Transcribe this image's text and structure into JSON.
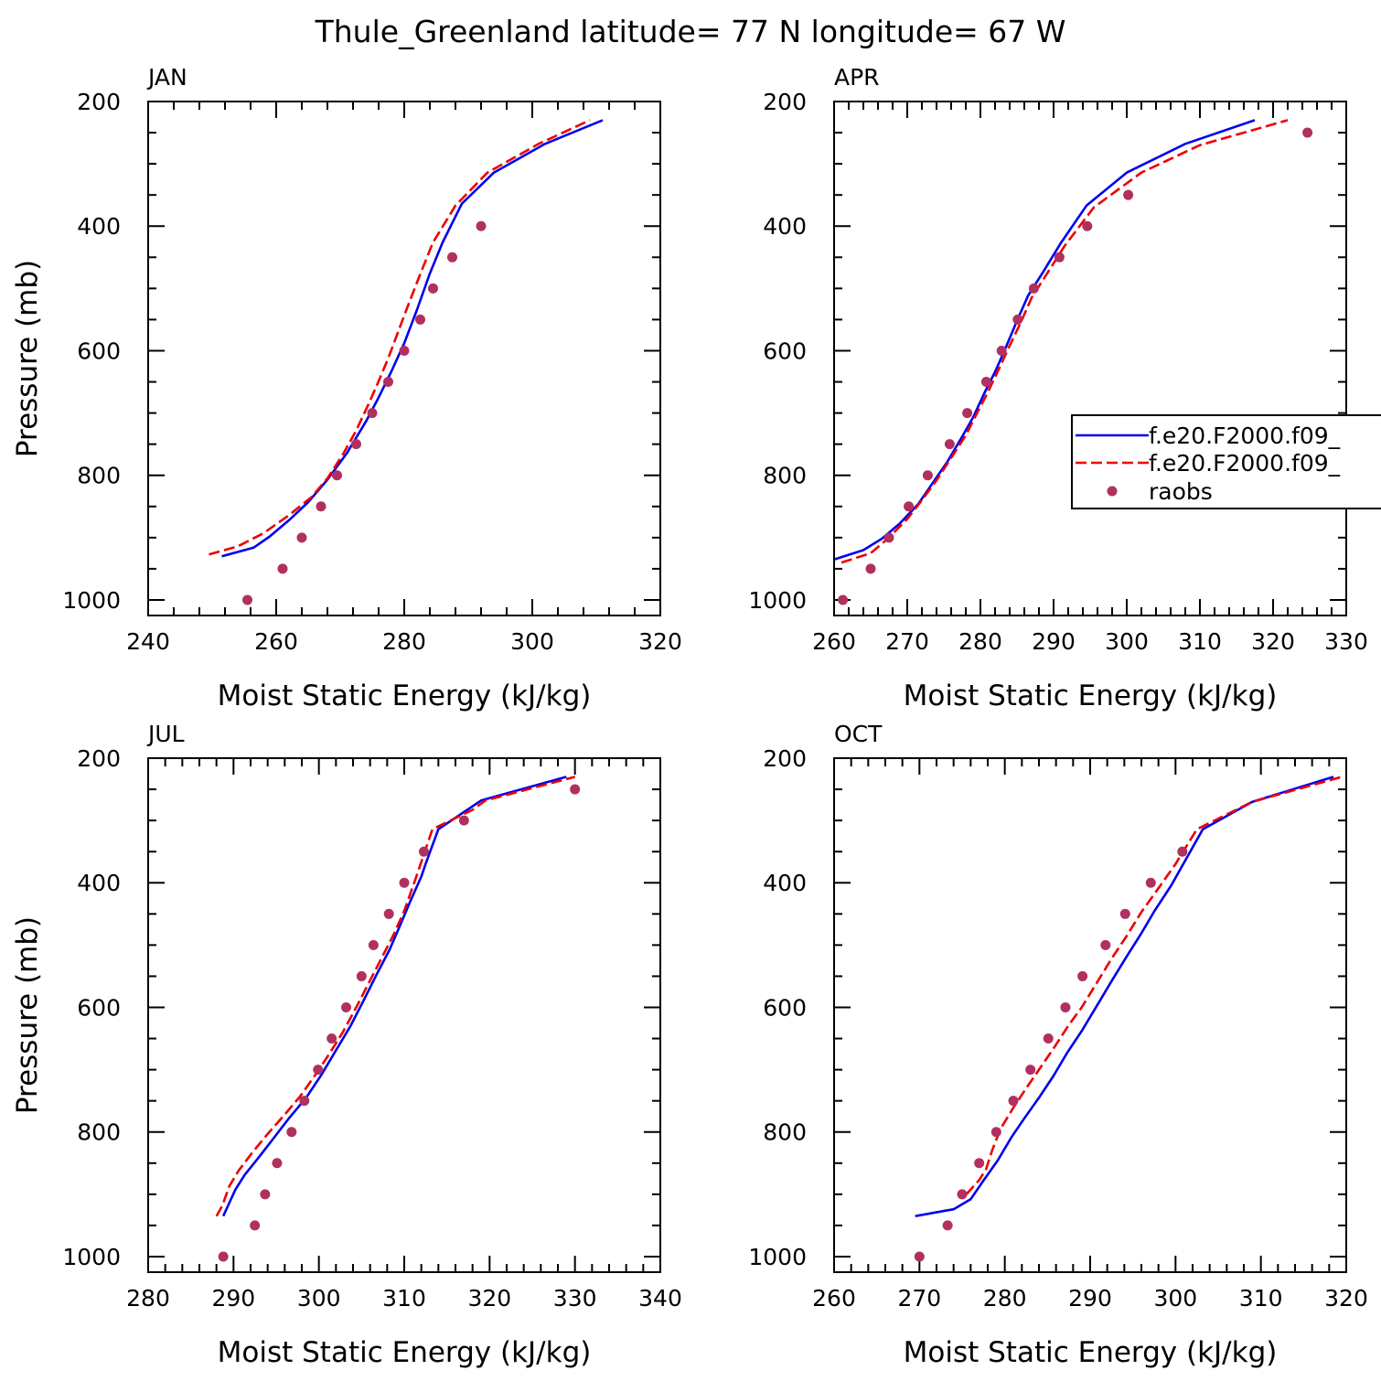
{
  "title": "Thule_Greenland  latitude= 77 N longitude= 67 W",
  "colors": {
    "model1": "#0000ee",
    "model2": "#ee0000",
    "obs": "#b03060"
  },
  "legend": {
    "entries": [
      {
        "label": "f.e20.F2000.f09_",
        "style": "solid-blue"
      },
      {
        "label": "f.e20.F2000.f09_",
        "style": "dashed-red"
      },
      {
        "label": "raobs",
        "style": "dot"
      }
    ]
  },
  "chart_data": [
    {
      "type": "line",
      "panel": "JAN",
      "xlabel": "Moist Static Energy (kJ/kg)",
      "ylabel": "Pressure (mb)",
      "xlim": [
        240,
        320
      ],
      "ylim": [
        200,
        1025
      ],
      "xticks": [
        240,
        260,
        280,
        300,
        320
      ],
      "yticks": [
        200,
        400,
        600,
        800,
        1000
      ],
      "series": [
        {
          "name": "f.e20.F2000.f09_",
          "style": "solid",
          "points": [
            [
              251.5,
              930
            ],
            [
              256.5,
              916
            ],
            [
              259,
              898
            ],
            [
              262,
              872
            ],
            [
              265,
              843
            ],
            [
              268,
              807
            ],
            [
              271,
              765
            ],
            [
              274,
              714
            ],
            [
              276,
              675
            ],
            [
              278,
              633
            ],
            [
              280,
              588
            ],
            [
              282,
              534
            ],
            [
              284,
              476
            ],
            [
              286,
              426
            ],
            [
              289,
              364
            ],
            [
              294,
              314
            ],
            [
              302,
              268
            ],
            [
              311,
              230
            ]
          ]
        },
        {
          "name": "f.e20.F2000.f09_",
          "style": "dashed",
          "points": [
            [
              249.5,
              927
            ],
            [
              254,
              914
            ],
            [
              258,
              893
            ],
            [
              262,
              864
            ],
            [
              265.5,
              835
            ],
            [
              268,
              805
            ],
            [
              270.5,
              765
            ],
            [
              272.5,
              728
            ],
            [
              274.5,
              684
            ],
            [
              276,
              649
            ],
            [
              277.5,
              612
            ],
            [
              279,
              571
            ],
            [
              280.5,
              530
            ],
            [
              282.5,
              477
            ],
            [
              284.5,
              426
            ],
            [
              288,
              367
            ],
            [
              293,
              314
            ],
            [
              301,
              268
            ],
            [
              309,
              230
            ]
          ]
        },
        {
          "name": "raobs",
          "style": "points",
          "points": [
            [
              255.5,
              1000
            ],
            [
              261,
              950
            ],
            [
              264,
              900
            ],
            [
              267,
              850
            ],
            [
              269.5,
              800
            ],
            [
              272.5,
              750
            ],
            [
              275,
              700
            ],
            [
              277.5,
              650
            ],
            [
              280,
              600
            ],
            [
              282.5,
              550
            ],
            [
              284.5,
              500
            ],
            [
              287.5,
              450
            ],
            [
              292,
              400
            ]
          ]
        }
      ]
    },
    {
      "type": "line",
      "panel": "APR",
      "xlabel": "Moist Static Energy (kJ/kg)",
      "ylabel": "",
      "xlim": [
        260,
        330
      ],
      "ylim": [
        200,
        1025
      ],
      "xticks": [
        260,
        270,
        280,
        290,
        300,
        310,
        320,
        330
      ],
      "yticks": [
        200,
        400,
        600,
        800,
        1000
      ],
      "series": [
        {
          "name": "f.e20.F2000.f09_",
          "style": "solid",
          "points": [
            [
              260,
              935
            ],
            [
              264,
              920
            ],
            [
              266.5,
              902
            ],
            [
              269,
              877
            ],
            [
              271.5,
              846
            ],
            [
              273.5,
              812
            ],
            [
              275.5,
              778
            ],
            [
              277.5,
              738
            ],
            [
              279,
              707
            ],
            [
              280.5,
              669
            ],
            [
              282,
              634
            ],
            [
              283.5,
              594
            ],
            [
              285,
              552
            ],
            [
              286.5,
              512
            ],
            [
              288.5,
              475
            ],
            [
              291,
              427
            ],
            [
              294.5,
              367
            ],
            [
              300,
              314
            ],
            [
              308,
              268
            ],
            [
              317.5,
              230
            ]
          ]
        },
        {
          "name": "f.e20.F2000.f09_",
          "style": "dashed",
          "points": [
            [
              261,
              940
            ],
            [
              265,
              925
            ],
            [
              267.5,
              900
            ],
            [
              270,
              870
            ],
            [
              272,
              840
            ],
            [
              274,
              808
            ],
            [
              276,
              772
            ],
            [
              278,
              736
            ],
            [
              279.5,
              701
            ],
            [
              281,
              667
            ],
            [
              282.5,
              630
            ],
            [
              284,
              592
            ],
            [
              285.5,
              555
            ],
            [
              287,
              515
            ],
            [
              289,
              478
            ],
            [
              291.5,
              432
            ],
            [
              295.5,
              370
            ],
            [
              302,
              314
            ],
            [
              310,
              270
            ],
            [
              322,
              230
            ]
          ]
        },
        {
          "name": "raobs",
          "style": "points",
          "points": [
            [
              261.2,
              1000
            ],
            [
              265,
              950
            ],
            [
              267.5,
              900
            ],
            [
              270.2,
              850
            ],
            [
              272.8,
              800
            ],
            [
              275.8,
              750
            ],
            [
              278.2,
              700
            ],
            [
              280.8,
              650
            ],
            [
              282.9,
              600
            ],
            [
              285.1,
              550
            ],
            [
              287.3,
              500
            ],
            [
              290.8,
              450
            ],
            [
              294.6,
              400
            ],
            [
              300.2,
              350
            ],
            [
              324.7,
              250
            ]
          ]
        }
      ]
    },
    {
      "type": "line",
      "panel": "JUL",
      "xlabel": "Moist Static Energy (kJ/kg)",
      "ylabel": "Pressure (mb)",
      "xlim": [
        280,
        340
      ],
      "ylim": [
        200,
        1025
      ],
      "xticks": [
        280,
        290,
        300,
        310,
        320,
        330,
        340
      ],
      "yticks": [
        200,
        400,
        600,
        800,
        1000
      ],
      "series": [
        {
          "name": "f.e20.F2000.f09_",
          "style": "solid",
          "points": [
            [
              288.8,
              935
            ],
            [
              289.3,
              920
            ],
            [
              290.2,
              893
            ],
            [
              291.3,
              869
            ],
            [
              293,
              840
            ],
            [
              294.7,
              810
            ],
            [
              296.5,
              778
            ],
            [
              298.5,
              745
            ],
            [
              300.3,
              708
            ],
            [
              302,
              669
            ],
            [
              303.7,
              630
            ],
            [
              305.2,
              590
            ],
            [
              306.7,
              549
            ],
            [
              308.3,
              507
            ],
            [
              309.5,
              469
            ],
            [
              310.7,
              430
            ],
            [
              312,
              390
            ],
            [
              312.5,
              370
            ],
            [
              314,
              314
            ],
            [
              319,
              268
            ],
            [
              329,
              230
            ]
          ]
        },
        {
          "name": "f.e20.F2000.f09_",
          "style": "dashed",
          "points": [
            [
              288,
              935
            ],
            [
              288.7,
              918
            ],
            [
              289.5,
              887
            ],
            [
              290.6,
              862
            ],
            [
              292.2,
              833
            ],
            [
              294,
              803
            ],
            [
              296,
              772
            ],
            [
              297.8,
              743
            ],
            [
              299.6,
              708
            ],
            [
              301.2,
              675
            ],
            [
              302.8,
              640
            ],
            [
              304.3,
              602
            ],
            [
              305.8,
              562
            ],
            [
              307.3,
              522
            ],
            [
              308.8,
              482
            ],
            [
              310,
              445
            ],
            [
              311.3,
              395
            ],
            [
              313.3,
              314
            ],
            [
              318,
              283
            ],
            [
              319.5,
              268
            ],
            [
              330,
              230
            ]
          ]
        },
        {
          "name": "raobs",
          "style": "points",
          "points": [
            [
              288.8,
              1000
            ],
            [
              292.5,
              950
            ],
            [
              293.7,
              900
            ],
            [
              295.1,
              850
            ],
            [
              296.8,
              800
            ],
            [
              298.3,
              750
            ],
            [
              299.9,
              700
            ],
            [
              301.5,
              650
            ],
            [
              303.2,
              600
            ],
            [
              305,
              550
            ],
            [
              306.4,
              500
            ],
            [
              308.2,
              450
            ],
            [
              310,
              400
            ],
            [
              312.3,
              350
            ],
            [
              317,
              300
            ],
            [
              330,
              250
            ]
          ]
        }
      ]
    },
    {
      "type": "line",
      "panel": "OCT",
      "xlabel": "Moist Static Energy (kJ/kg)",
      "ylabel": "",
      "xlim": [
        260,
        320
      ],
      "ylim": [
        200,
        1025
      ],
      "xticks": [
        260,
        270,
        280,
        290,
        300,
        310,
        320
      ],
      "yticks": [
        200,
        400,
        600,
        800,
        1000
      ],
      "series": [
        {
          "name": "f.e20.F2000.f09_",
          "style": "solid",
          "points": [
            [
              269.5,
              935
            ],
            [
              274,
              924
            ],
            [
              276,
              908
            ],
            [
              277.5,
              878
            ],
            [
              279.2,
              845
            ],
            [
              280.8,
              808
            ],
            [
              282.3,
              778
            ],
            [
              284,
              745
            ],
            [
              285.7,
              710
            ],
            [
              287.3,
              673
            ],
            [
              289,
              638
            ],
            [
              290.8,
              597
            ],
            [
              292.5,
              558
            ],
            [
              294.3,
              518
            ],
            [
              296,
              481
            ],
            [
              297.5,
              446
            ],
            [
              299.5,
              404
            ],
            [
              303.2,
              314
            ],
            [
              309,
              270
            ],
            [
              318.5,
              230
            ]
          ]
        },
        {
          "name": "f.e20.F2000.f09_",
          "style": "dashed",
          "points": [
            [
              275.5,
              900
            ],
            [
              277,
              877
            ],
            [
              277.8,
              860
            ],
            [
              278.5,
              830
            ],
            [
              279.5,
              795
            ],
            [
              281,
              761
            ],
            [
              282.6,
              728
            ],
            [
              284.2,
              696
            ],
            [
              285.8,
              664
            ],
            [
              287.5,
              628
            ],
            [
              289,
              600
            ],
            [
              290.8,
              560
            ],
            [
              292.5,
              522
            ],
            [
              294.3,
              485
            ],
            [
              296,
              447
            ],
            [
              298.2,
              405
            ],
            [
              300,
              370
            ],
            [
              302.5,
              314
            ],
            [
              309,
              270
            ],
            [
              319.5,
              230
            ]
          ]
        },
        {
          "name": "raobs",
          "style": "points",
          "points": [
            [
              270,
              1000
            ],
            [
              273.3,
              950
            ],
            [
              275,
              900
            ],
            [
              277,
              850
            ],
            [
              279,
              800
            ],
            [
              281,
              750
            ],
            [
              283,
              700
            ],
            [
              285.1,
              650
            ],
            [
              287.1,
              600
            ],
            [
              289.1,
              550
            ],
            [
              291.8,
              500
            ],
            [
              294.1,
              450
            ],
            [
              297.1,
              400
            ],
            [
              300.8,
              350
            ]
          ]
        }
      ]
    }
  ]
}
